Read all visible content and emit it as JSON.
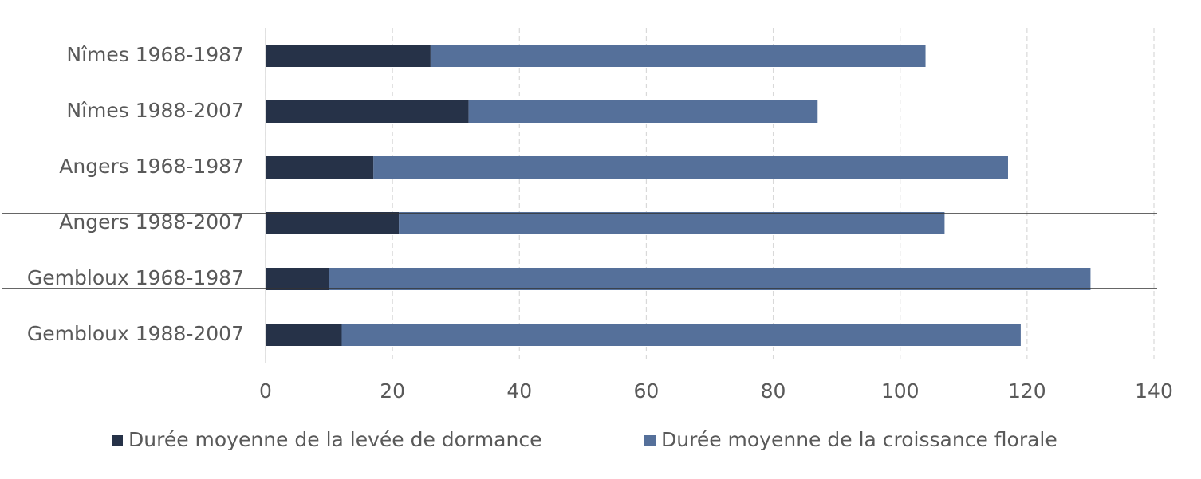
{
  "chart_data": {
    "type": "stacked-bar-horizontal",
    "categories": [
      "Nîmes 1968-1987",
      "Nîmes 1988-2007",
      "Angers 1968-1987",
      "Angers 1988-2007",
      "Gembloux 1968-1987",
      "Gembloux 1988-2007"
    ],
    "series": [
      {
        "name": "Durée moyenne de la levée de dormance",
        "color": "#263248",
        "values": [
          26,
          32,
          17,
          21,
          10,
          12
        ]
      },
      {
        "name": "Durée moyenne de la croissance florale",
        "color": "#55709a",
        "values": [
          78,
          55,
          100,
          86,
          120,
          107
        ]
      }
    ],
    "xlim": [
      0,
      140
    ],
    "xticks": [
      0,
      20,
      40,
      60,
      80,
      100,
      120,
      140
    ],
    "grid": true,
    "legend": "bottom"
  }
}
